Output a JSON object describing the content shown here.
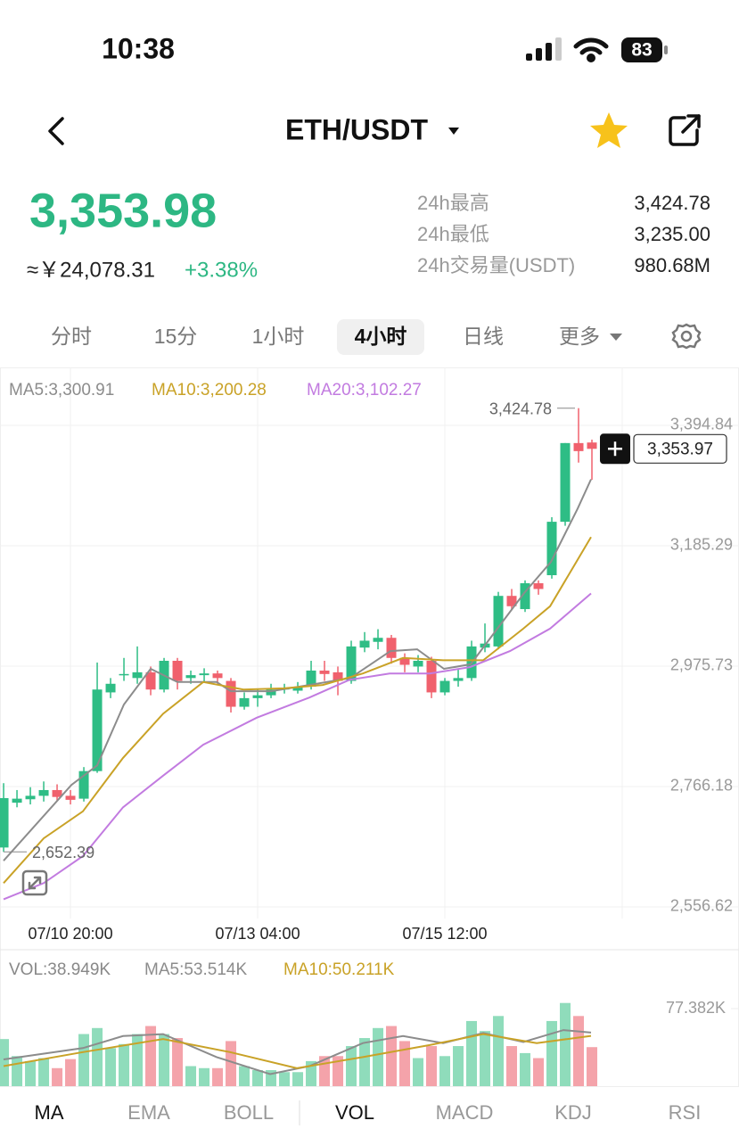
{
  "status_bar": {
    "time": "10:38",
    "battery": "83"
  },
  "header": {
    "pair": "ETH/USDT"
  },
  "ticker": {
    "price": "3,353.98",
    "fiat": "≈￥24,078.31",
    "change": "+3.38%",
    "stats": [
      {
        "label": "24h最高",
        "value": "3,424.78"
      },
      {
        "label": "24h最低",
        "value": "3,235.00"
      },
      {
        "label": "24h交易量(USDT)",
        "value": "980.68M"
      }
    ]
  },
  "intervals": {
    "tabs": [
      "分时",
      "15分",
      "1小时",
      "4小时",
      "日线",
      "更多"
    ],
    "selected": 3
  },
  "indicators": {
    "tabs": [
      "MA",
      "EMA",
      "BOLL",
      "VOL",
      "MACD",
      "KDJ",
      "RSI"
    ],
    "selected": [
      0,
      3
    ]
  },
  "chart_data": [
    {
      "type": "candlestick",
      "up_color": "#2ebd85",
      "down_color": "#f0616d",
      "open": [
        2660,
        2738,
        2744,
        2750,
        2760,
        2750,
        2745,
        2793,
        2930,
        2960,
        2955,
        2965,
        2935,
        2985,
        2955,
        2960,
        2963,
        2950,
        2905,
        2920,
        2925,
        2935,
        2933,
        2940,
        2968,
        2965,
        2950,
        3008,
        3018,
        3025,
        2990,
        2975,
        2985,
        2930,
        2950,
        2955,
        3008,
        3010,
        3098,
        3075,
        3120,
        3134,
        3227,
        3364,
        3365
      ],
      "high": [
        2772,
        2760,
        2765,
        2775,
        2770,
        2760,
        2800,
        2982,
        2955,
        2990,
        3010,
        2975,
        2990,
        2990,
        2968,
        2972,
        2968,
        2955,
        2930,
        2935,
        2945,
        2945,
        2948,
        2985,
        2985,
        2975,
        3020,
        3035,
        3040,
        3030,
        2998,
        2995,
        2992,
        2955,
        2970,
        3020,
        3050,
        3105,
        3110,
        3125,
        3125,
        3235,
        3364,
        3424.78,
        3370
      ],
      "low": [
        2652.39,
        2730,
        2735,
        2740,
        2742,
        2735,
        2740,
        2790,
        2920,
        2950,
        2945,
        2925,
        2930,
        2935,
        2945,
        2948,
        2945,
        2895,
        2900,
        2905,
        2920,
        2928,
        2928,
        2935,
        2950,
        2925,
        2945,
        3000,
        3005,
        2980,
        2965,
        2965,
        2920,
        2925,
        2940,
        2950,
        3000,
        3005,
        3075,
        3070,
        3100,
        3128,
        3220,
        3330,
        3300
      ],
      "close": [
        2746,
        2745,
        2750,
        2760,
        2748,
        2743,
        2793,
        2935,
        2945,
        2962,
        2965,
        2935,
        2985,
        2950,
        2960,
        2963,
        2955,
        2905,
        2920,
        2925,
        2935,
        2938,
        2940,
        2968,
        2962,
        2950,
        3010,
        3020,
        3025,
        2990,
        2978,
        2985,
        2930,
        2950,
        2955,
        3010,
        3015,
        3098,
        3080,
        3120,
        3110,
        3227,
        3364,
        3350,
        3353.97
      ],
      "series": [
        {
          "name": "MA5:3,300.91",
          "color": "#8c8c8c",
          "x": [
            0,
            5.07,
            7,
            9,
            11,
            13,
            15.93,
            17,
            20,
            22.87,
            25.93,
            28.93,
            30.93,
            32.93,
            34.93,
            36.93,
            38.93,
            40.93,
            42.93,
            43.93
          ],
          "values": [
            2637,
            2769,
            2803,
            2909,
            2971,
            2948,
            2948,
            2932,
            2932,
            2943,
            2955,
            3002,
            3005,
            2971,
            2979,
            3041,
            3103,
            3157,
            3250,
            3300.91
          ]
        },
        {
          "name": "MA10:3,200.28",
          "color": "#c9a227",
          "x": [
            0,
            3,
            5.93,
            8.93,
            11.93,
            14.93,
            17.93,
            20.93,
            23.87,
            26.87,
            29.87,
            32.87,
            35.87,
            38.87,
            40.87,
            43.93
          ],
          "values": [
            2598,
            2676,
            2723,
            2816,
            2893,
            2948,
            2935,
            2937,
            2943,
            2963,
            2990,
            2986,
            2986,
            3041,
            3080,
            3200.28
          ]
        },
        {
          "name": "MA20:3,102.27",
          "color": "#c27be0",
          "x": [
            0,
            3,
            5.93,
            8.93,
            11.93,
            14.93,
            18.93,
            22.87,
            25.87,
            28.87,
            31.87,
            34.87,
            37.87,
            40.87,
            43.93
          ],
          "values": [
            2570,
            2598,
            2645,
            2730,
            2785,
            2839,
            2886,
            2921,
            2952,
            2963,
            2963,
            2974,
            3002,
            3041,
            3102.27
          ]
        }
      ],
      "xlim": [
        -0.27,
        55
      ],
      "ylim": [
        2536.4,
        3495.7
      ],
      "xticks": [
        {
          "value": 5,
          "label": "07/10 20:00"
        },
        {
          "value": 19,
          "label": "07/13 04:00"
        },
        {
          "value": 33,
          "label": "07/15 12:00"
        }
      ],
      "yticks": [
        {
          "value": 2556.62,
          "label": "2,556.62"
        },
        {
          "value": 2766.18,
          "label": "2,766.18"
        },
        {
          "value": 2975.73,
          "label": "2,975.73"
        },
        {
          "value": 3185.29,
          "label": "3,185.29"
        },
        {
          "value": 3394.84,
          "label": "3,394.84"
        }
      ],
      "annotations": [
        {
          "text": "3,424.78",
          "x": 43,
          "y": 3424.78
        },
        {
          "text": "2,652.39",
          "x": 0,
          "y": 2652.39
        },
        {
          "text": "3,353.97",
          "x": 44,
          "y": 3353.97
        }
      ],
      "grid": true
    },
    {
      "type": "bar",
      "name": "VOL:38.949K",
      "up_color": "#8fdcbb",
      "down_color": "#f4a3aa",
      "values": [
        47,
        30,
        25,
        28,
        18,
        27,
        52,
        58,
        38,
        42,
        52,
        60,
        52,
        48,
        20,
        18,
        18,
        45,
        20,
        16,
        16,
        14,
        14,
        25,
        30,
        30,
        40,
        48,
        58,
        60,
        45,
        28,
        40,
        30,
        40,
        65,
        55,
        70,
        40,
        33,
        28,
        65,
        83,
        70,
        38.949
      ],
      "series": [
        {
          "name": "MA5:53.514K",
          "color": "#8c8c8c",
          "x": [
            0,
            5.93,
            8.93,
            11.93,
            15.93,
            19.93,
            22.87,
            26.87,
            29.87,
            32.87,
            35.87,
            38.87,
            41.87,
            43.93
          ],
          "values": [
            26.7,
            38,
            50,
            52,
            29,
            12,
            20,
            43,
            50,
            43,
            53,
            44,
            56,
            53.514
          ]
        },
        {
          "name": "MA10:50.211K",
          "color": "#c9a227",
          "x": [
            0,
            5.93,
            11.93,
            16.93,
            21.93,
            26.87,
            31.87,
            35.87,
            39.87,
            43.93
          ],
          "values": [
            20,
            34,
            47,
            34,
            18,
            29,
            41,
            52,
            43,
            50.211
          ]
        }
      ],
      "xlim": [
        -0.27,
        55
      ],
      "ylim": [
        0,
        100
      ],
      "yticks": [
        {
          "value": 77.382,
          "label": "77.382K"
        }
      ]
    }
  ]
}
